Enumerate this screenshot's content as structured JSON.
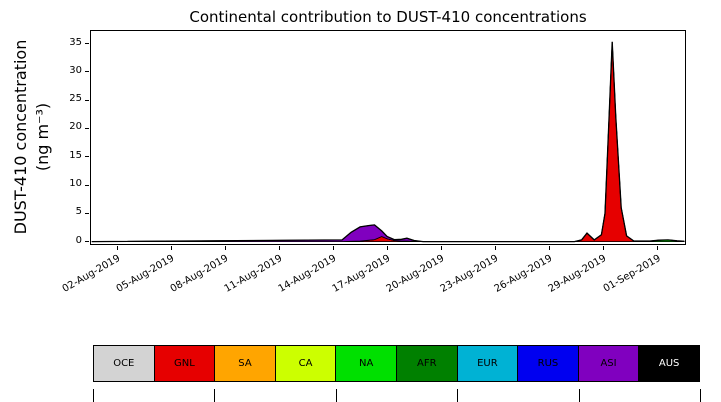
{
  "title": "Continental contribution to DUST-410 concentrations",
  "y_axis": {
    "label_line1": "DUST-410 concentration",
    "label_line2": "(ng m⁻³)",
    "ticks": [
      0,
      5,
      10,
      15,
      20,
      25,
      30,
      35
    ]
  },
  "x_axis": {
    "ticks": [
      {
        "label": "02-Aug-2019",
        "day": 2
      },
      {
        "label": "05-Aug-2019",
        "day": 5
      },
      {
        "label": "08-Aug-2019",
        "day": 8
      },
      {
        "label": "11-Aug-2019",
        "day": 11
      },
      {
        "label": "14-Aug-2019",
        "day": 14
      },
      {
        "label": "17-Aug-2019",
        "day": 17
      },
      {
        "label": "20-Aug-2019",
        "day": 20
      },
      {
        "label": "23-Aug-2019",
        "day": 23
      },
      {
        "label": "26-Aug-2019",
        "day": 26
      },
      {
        "label": "29-Aug-2019",
        "day": 29
      },
      {
        "label": "01-Sep-2019",
        "day": 32
      }
    ]
  },
  "legend": {
    "entries": [
      {
        "label": "OCE",
        "color": "#d3d3d3",
        "text": "#000000"
      },
      {
        "label": "GNL",
        "color": "#e60000",
        "text": "#000000"
      },
      {
        "label": "SA",
        "color": "#ffa500",
        "text": "#000000"
      },
      {
        "label": "CA",
        "color": "#ccff00",
        "text": "#000000"
      },
      {
        "label": "NA",
        "color": "#00e000",
        "text": "#000000"
      },
      {
        "label": "AFR",
        "color": "#008000",
        "text": "#000000"
      },
      {
        "label": "EUR",
        "color": "#00b2d4",
        "text": "#000000"
      },
      {
        "label": "RUS",
        "color": "#0000f0",
        "text": "#000000"
      },
      {
        "label": "ASI",
        "color": "#8000bf",
        "text": "#000000"
      },
      {
        "label": "AUS",
        "color": "#000000",
        "text": "#ffffff"
      }
    ]
  },
  "chart_data": {
    "type": "area",
    "stacked": true,
    "title": "Continental contribution to DUST-410 concentrations",
    "xlabel": "",
    "ylabel": "DUST-410 concentration (ng m⁻³)",
    "x_unit": "days (day-of-August-2019; 32 = 01-Sep-2019)",
    "xlim_days": [
      0.5,
      33.6
    ],
    "ylim": [
      -0.6,
      37.4
    ],
    "grid": false,
    "legend_position": "bottom-table",
    "x_days": [
      0.6,
      14.5,
      15.0,
      15.5,
      16.0,
      16.3,
      16.7,
      17.0,
      17.4,
      17.8,
      18.1,
      18.5,
      19.0,
      19.5,
      27.4,
      27.8,
      28.1,
      28.5,
      28.9,
      29.1,
      29.3,
      29.5,
      29.7,
      30.0,
      30.3,
      30.7,
      31.6,
      32.1,
      32.6,
      33.1,
      33.5
    ],
    "series": [
      {
        "name": "GNL",
        "color": "#e60000",
        "values": [
          0,
          0,
          0.05,
          0.1,
          0.25,
          0.35,
          0.9,
          0.5,
          0.2,
          0.1,
          0.1,
          0.05,
          0,
          0,
          0,
          0.3,
          1.5,
          0.3,
          1.2,
          5,
          20,
          35.3,
          22,
          6,
          1,
          0.1,
          0,
          0,
          0,
          0,
          0
        ]
      },
      {
        "name": "NA",
        "color": "#00e000",
        "values": [
          0,
          0,
          0,
          0,
          0,
          0,
          0,
          0,
          0,
          0,
          0,
          0,
          0,
          0,
          0,
          0,
          0,
          0,
          0,
          0,
          0,
          0,
          0,
          0,
          0,
          0,
          0.1,
          0.25,
          0.3,
          0.15,
          0.05
        ]
      },
      {
        "name": "ASI",
        "color": "#8000bf",
        "values": [
          0,
          0.3,
          1.6,
          2.5,
          2.6,
          2.6,
          1.0,
          0.4,
          0.15,
          0.3,
          0.5,
          0.15,
          0,
          0,
          0,
          0,
          0,
          0,
          0,
          0,
          0,
          0,
          0,
          0,
          0,
          0,
          0,
          0,
          0,
          0,
          0
        ]
      }
    ],
    "zero_contribution_series": [
      "OCE",
      "SA",
      "CA",
      "AFR",
      "EUR",
      "RUS",
      "AUS"
    ],
    "peak_value": 35.3,
    "peak_day_label": "29-Aug-2019"
  }
}
